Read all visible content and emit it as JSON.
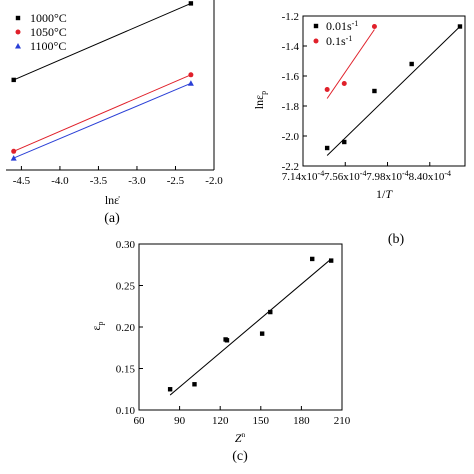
{
  "chart_data": [
    {
      "type": "scatter",
      "panel_label": "(a)",
      "xlabel": "lnε̇",
      "ylabel": "",
      "xlim": [
        -4.7,
        -2.0
      ],
      "ylim": [
        0.0,
        1.0
      ],
      "xticks": [
        "-4.5",
        "-4.0",
        "-3.5",
        "-3.0",
        "-2.5",
        "-2.0"
      ],
      "xtick_values": [
        -4.5,
        -4.0,
        -3.5,
        -3.0,
        -2.5,
        -2.0
      ],
      "legend_position": "top-left",
      "series": [
        {
          "name": "1000°C",
          "color": "#000000",
          "marker": "square",
          "x": [
            -4.6,
            -2.3
          ],
          "y": [
            0.53,
            0.98
          ],
          "fit": [
            [
              -4.6,
              0.53
            ],
            [
              -2.3,
              0.98
            ]
          ]
        },
        {
          "name": "1050°C",
          "color": "#e0202a",
          "marker": "circle",
          "x": [
            -4.6,
            -2.3
          ],
          "y": [
            0.11,
            0.56
          ],
          "fit": [
            [
              -4.6,
              0.11
            ],
            [
              -2.3,
              0.56
            ]
          ]
        },
        {
          "name": "1100°C",
          "color": "#2a3fd6",
          "marker": "triangle",
          "x": [
            -4.6,
            -2.3
          ],
          "y": [
            0.07,
            0.51
          ],
          "fit": [
            [
              -4.6,
              0.07
            ],
            [
              -2.3,
              0.51
            ]
          ]
        }
      ]
    },
    {
      "type": "scatter",
      "panel_label": "(b)",
      "xlabel": "1/T",
      "ylabel": "lnεp",
      "xlim": [
        0.000714,
        0.000875
      ],
      "ylim": [
        -2.2,
        -1.2
      ],
      "xticks": [
        "7.14x10-4",
        "7.56x10-4",
        "7.98x10-4",
        "8.40x10-4"
      ],
      "xtick_values": [
        0.000714,
        0.000756,
        0.000798,
        0.00084
      ],
      "yticks": [
        "-1.2",
        "-1.4",
        "-1.6",
        "-1.8",
        "-2.0",
        "-2.2"
      ],
      "ytick_values": [
        -1.2,
        -1.4,
        -1.6,
        -1.8,
        -2.0,
        -2.2
      ],
      "legend_position": "top-left",
      "series": [
        {
          "name": "0.01s-1",
          "color": "#000000",
          "marker": "square",
          "x": [
            0.000738,
            0.000755,
            0.000785,
            0.000822,
            0.00087
          ],
          "y": [
            -2.08,
            -2.04,
            -1.7,
            -1.52,
            -1.27
          ],
          "fit": [
            [
              0.000738,
              -2.13
            ],
            [
              0.00087,
              -1.27
            ]
          ]
        },
        {
          "name": "0.1s-1",
          "color": "#e0202a",
          "marker": "circle",
          "x": [
            0.000738,
            0.000755,
            0.000785
          ],
          "y": [
            -1.69,
            -1.65,
            -1.27
          ],
          "fit": [
            [
              0.000738,
              -1.75
            ],
            [
              0.000785,
              -1.29
            ]
          ]
        }
      ]
    },
    {
      "type": "scatter",
      "panel_label": "(c)",
      "xlabel": "Zn",
      "ylabel": "εp",
      "xlim": [
        60,
        210
      ],
      "ylim": [
        0.1,
        0.3
      ],
      "xticks": [
        "60",
        "90",
        "120",
        "150",
        "180",
        "210"
      ],
      "xtick_values": [
        60,
        90,
        120,
        150,
        180,
        210
      ],
      "yticks": [
        "0.10",
        "0.15",
        "0.20",
        "0.25",
        "0.30"
      ],
      "ytick_values": [
        0.1,
        0.15,
        0.2,
        0.25,
        0.3
      ],
      "series": [
        {
          "name": "",
          "color": "#000000",
          "marker": "square",
          "x": [
            83,
            101,
            124,
            125,
            151,
            157,
            188,
            202
          ],
          "y": [
            0.125,
            0.131,
            0.185,
            0.184,
            0.192,
            0.218,
            0.282,
            0.28
          ],
          "fit": [
            [
              83,
              0.118
            ],
            [
              202,
              0.282
            ]
          ]
        }
      ]
    }
  ]
}
